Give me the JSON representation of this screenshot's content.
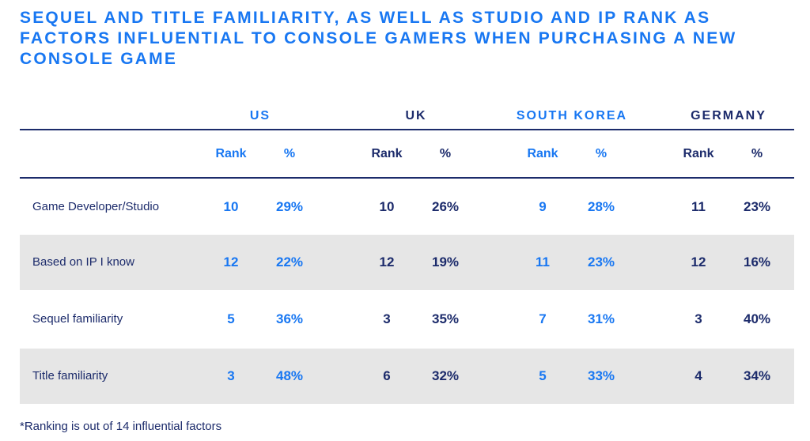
{
  "title": "SEQUEL AND TITLE FAMILIARITY, AS WELL AS STUDIO AND IP RANK AS FACTORS INFLUENTIAL TO CONSOLE GAMERS WHEN PURCHASING A NEW CONSOLE GAME",
  "chart_data": {
    "type": "table",
    "columns": [
      {
        "country": "US",
        "color": "#1877f2"
      },
      {
        "country": "UK",
        "color": "#1c2b6b"
      },
      {
        "country": "SOUTH KOREA",
        "color": "#1877f2"
      },
      {
        "country": "GERMANY",
        "color": "#1c2b6b"
      }
    ],
    "subheaders": {
      "rank": "Rank",
      "pct": "%"
    },
    "rows": [
      {
        "label": "Game Developer/Studio",
        "shaded": false,
        "values": [
          {
            "rank": "10",
            "pct": "29%"
          },
          {
            "rank": "10",
            "pct": "26%"
          },
          {
            "rank": "9",
            "pct": "28%"
          },
          {
            "rank": "11",
            "pct": "23%"
          }
        ]
      },
      {
        "label": "Based on IP I know",
        "shaded": true,
        "values": [
          {
            "rank": "12",
            "pct": "22%"
          },
          {
            "rank": "12",
            "pct": "19%"
          },
          {
            "rank": "11",
            "pct": "23%"
          },
          {
            "rank": "12",
            "pct": "16%"
          }
        ]
      },
      {
        "label": "Sequel familiarity",
        "shaded": false,
        "values": [
          {
            "rank": "5",
            "pct": "36%"
          },
          {
            "rank": "3",
            "pct": "35%"
          },
          {
            "rank": "7",
            "pct": "31%"
          },
          {
            "rank": "3",
            "pct": "40%"
          }
        ]
      },
      {
        "label": "Title familiarity",
        "shaded": true,
        "values": [
          {
            "rank": "3",
            "pct": "48%"
          },
          {
            "rank": "6",
            "pct": "32%"
          },
          {
            "rank": "5",
            "pct": "33%"
          },
          {
            "rank": "4",
            "pct": "34%"
          }
        ]
      }
    ]
  },
  "footnote": "*Ranking is out of 14 influential factors"
}
